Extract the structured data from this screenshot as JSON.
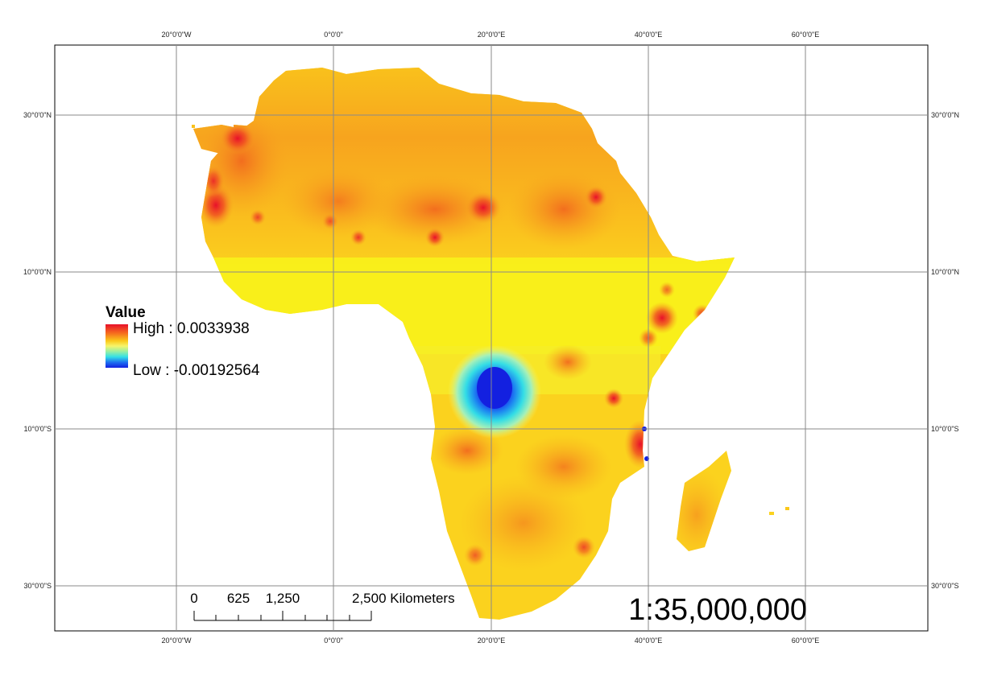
{
  "map": {
    "legend": {
      "title": "Value",
      "high_label": "High : 0.0033938",
      "low_label": "Low : -0.00192564",
      "ramp_colors": [
        "#e8102a",
        "#f56a1e",
        "#fbc81a",
        "#f7f56a",
        "#9ef0a0",
        "#33e0e6",
        "#1e6cf0",
        "#1320e0"
      ]
    },
    "graticule": {
      "top_labels": [
        "20°0'0\"W",
        "0°0'0\"",
        "20°0'0\"E",
        "40°0'0\"E",
        "60°0'0\"E"
      ],
      "bottom_labels": [
        "20°0'0\"W",
        "0°0'0\"",
        "20°0'0\"E",
        "40°0'0\"E",
        "60°0'0\"E"
      ],
      "left_labels": [
        "30°0'0\"N",
        "10°0'0\"N",
        "10°0'0\"S",
        "30°0'0\"S"
      ],
      "right_labels": [
        "30°0'0\"N",
        "10°0'0\"N",
        "10°0'0\"S",
        "30°0'0\"S"
      ]
    },
    "scale_bar": {
      "labels": [
        "0",
        "625",
        "1,250",
        "2,500 Kilometers"
      ]
    },
    "scale_ratio": "1:35,000,000",
    "colors": {
      "land_base": "#fbd21e",
      "equatorial_band": "#f8f21a",
      "high": "#e8102a",
      "low": "#1320e0",
      "frame": "#000000",
      "grid": "#8a8a8a"
    }
  }
}
